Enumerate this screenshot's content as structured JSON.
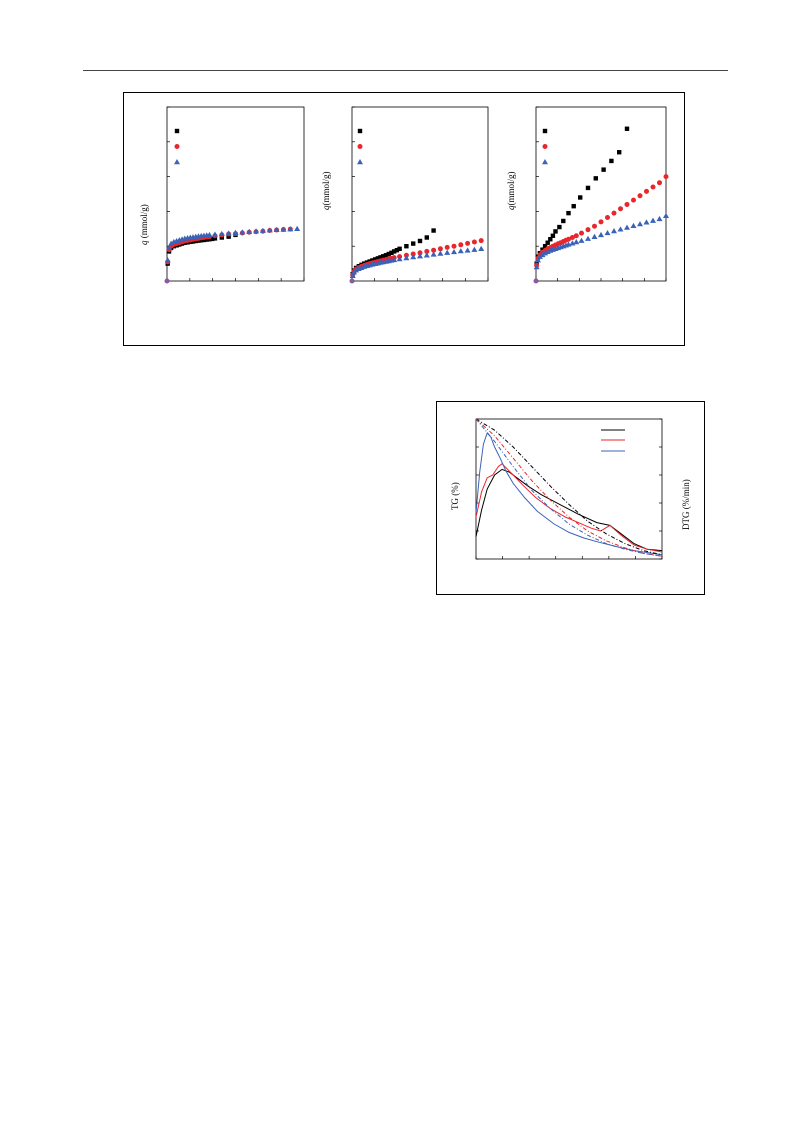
{
  "figure1": {
    "panels": [
      {
        "ylabel_italic": "q",
        "ylabel_rest": " (mmol/g)"
      },
      {
        "ylabel_italic": "q",
        "ylabel_rest": "(mmol/g)"
      },
      {
        "ylabel_italic": "q",
        "ylabel_rest": "(mmol/g)"
      }
    ]
  },
  "figure2": {
    "ylabel_left": "TG (%)",
    "ylabel_right": "DTG (%/min)"
  },
  "colors": {
    "black": "#000000",
    "red": "#e8262c",
    "blue": "#3a63b8"
  },
  "chart_data": [
    {
      "type": "scatter",
      "xlabel": "",
      "ylabel": "q (mmol/g)",
      "xlim": [
        0,
        1
      ],
      "ylim": [
        0,
        1
      ],
      "series": [
        {
          "marker": "square",
          "color": "#000000",
          "x": [
            0.005,
            0.015,
            0.03,
            0.05,
            0.07,
            0.09,
            0.11,
            0.13,
            0.15,
            0.17,
            0.19,
            0.21,
            0.23,
            0.25,
            0.27,
            0.29,
            0.31,
            0.33,
            0.35,
            0.4,
            0.45,
            0.5
          ],
          "y": [
            0.1,
            0.17,
            0.19,
            0.2,
            0.205,
            0.21,
            0.215,
            0.22,
            0.222,
            0.225,
            0.227,
            0.23,
            0.232,
            0.234,
            0.236,
            0.238,
            0.24,
            0.242,
            0.245,
            0.25,
            0.255,
            0.265
          ]
        },
        {
          "marker": "circle",
          "color": "#e8262c",
          "x": [
            0.005,
            0.015,
            0.03,
            0.05,
            0.07,
            0.09,
            0.11,
            0.13,
            0.15,
            0.17,
            0.19,
            0.21,
            0.23,
            0.25,
            0.27,
            0.29,
            0.31,
            0.35,
            0.4,
            0.45,
            0.5,
            0.55,
            0.6,
            0.65,
            0.7,
            0.75,
            0.8,
            0.85,
            0.9
          ],
          "y": [
            0.11,
            0.18,
            0.2,
            0.21,
            0.215,
            0.22,
            0.225,
            0.23,
            0.233,
            0.236,
            0.239,
            0.242,
            0.245,
            0.248,
            0.25,
            0.253,
            0.255,
            0.26,
            0.265,
            0.27,
            0.272,
            0.276,
            0.28,
            0.283,
            0.286,
            0.29,
            0.293,
            0.296,
            0.298
          ]
        },
        {
          "marker": "triangle",
          "color": "#3a63b8",
          "x": [
            0.005,
            0.015,
            0.03,
            0.05,
            0.07,
            0.09,
            0.11,
            0.13,
            0.15,
            0.17,
            0.19,
            0.21,
            0.23,
            0.25,
            0.27,
            0.29,
            0.31,
            0.35,
            0.4,
            0.45,
            0.5,
            0.55,
            0.6,
            0.65,
            0.7,
            0.75,
            0.8,
            0.85,
            0.9,
            0.95
          ],
          "y": [
            0.12,
            0.19,
            0.215,
            0.225,
            0.23,
            0.235,
            0.24,
            0.244,
            0.247,
            0.25,
            0.252,
            0.255,
            0.257,
            0.259,
            0.261,
            0.263,
            0.265,
            0.268,
            0.271,
            0.274,
            0.277,
            0.28,
            0.283,
            0.286,
            0.289,
            0.292,
            0.294,
            0.296,
            0.298,
            0.3
          ]
        }
      ]
    },
    {
      "type": "scatter",
      "xlabel": "",
      "ylabel": "q(mmol/g)",
      "xlim": [
        0,
        1
      ],
      "ylim": [
        0,
        1
      ],
      "series": [
        {
          "marker": "square",
          "color": "#000000",
          "x": [
            0.005,
            0.015,
            0.03,
            0.05,
            0.07,
            0.09,
            0.11,
            0.13,
            0.15,
            0.17,
            0.19,
            0.21,
            0.23,
            0.25,
            0.27,
            0.29,
            0.31,
            0.33,
            0.35,
            0.4,
            0.45,
            0.5,
            0.55,
            0.6
          ],
          "y": [
            0.04,
            0.06,
            0.075,
            0.085,
            0.093,
            0.1,
            0.106,
            0.112,
            0.118,
            0.124,
            0.13,
            0.136,
            0.142,
            0.148,
            0.155,
            0.162,
            0.17,
            0.177,
            0.185,
            0.2,
            0.215,
            0.23,
            0.25,
            0.29
          ]
        },
        {
          "marker": "circle",
          "color": "#e8262c",
          "x": [
            0.005,
            0.015,
            0.03,
            0.05,
            0.07,
            0.09,
            0.11,
            0.13,
            0.15,
            0.17,
            0.19,
            0.21,
            0.23,
            0.25,
            0.27,
            0.29,
            0.31,
            0.35,
            0.4,
            0.45,
            0.5,
            0.55,
            0.6,
            0.65,
            0.7,
            0.75,
            0.8,
            0.85,
            0.9,
            0.95
          ],
          "y": [
            0.035,
            0.055,
            0.068,
            0.077,
            0.084,
            0.09,
            0.095,
            0.1,
            0.104,
            0.108,
            0.112,
            0.116,
            0.12,
            0.123,
            0.127,
            0.13,
            0.134,
            0.14,
            0.148,
            0.155,
            0.162,
            0.17,
            0.177,
            0.185,
            0.193,
            0.2,
            0.208,
            0.216,
            0.224,
            0.232
          ]
        },
        {
          "marker": "triangle",
          "color": "#3a63b8",
          "x": [
            0.005,
            0.015,
            0.03,
            0.05,
            0.07,
            0.09,
            0.11,
            0.13,
            0.15,
            0.17,
            0.19,
            0.21,
            0.23,
            0.25,
            0.27,
            0.29,
            0.31,
            0.35,
            0.4,
            0.45,
            0.5,
            0.55,
            0.6,
            0.65,
            0.7,
            0.75,
            0.8,
            0.85,
            0.9,
            0.95
          ],
          "y": [
            0.03,
            0.05,
            0.062,
            0.07,
            0.076,
            0.082,
            0.087,
            0.091,
            0.095,
            0.099,
            0.102,
            0.106,
            0.109,
            0.112,
            0.115,
            0.118,
            0.121,
            0.126,
            0.132,
            0.138,
            0.143,
            0.148,
            0.153,
            0.158,
            0.163,
            0.167,
            0.172,
            0.176,
            0.18,
            0.185
          ]
        }
      ]
    },
    {
      "type": "scatter",
      "xlabel": "",
      "ylabel": "q(mmol/g)",
      "xlim": [
        0,
        1
      ],
      "ylim": [
        0,
        1
      ],
      "series": [
        {
          "marker": "square",
          "color": "#000000",
          "x": [
            0.005,
            0.015,
            0.03,
            0.05,
            0.07,
            0.09,
            0.11,
            0.13,
            0.15,
            0.18,
            0.21,
            0.25,
            0.29,
            0.34,
            0.4,
            0.46,
            0.52,
            0.58,
            0.64,
            0.7
          ],
          "y": [
            0.1,
            0.14,
            0.16,
            0.18,
            0.2,
            0.22,
            0.24,
            0.26,
            0.285,
            0.31,
            0.345,
            0.39,
            0.43,
            0.48,
            0.535,
            0.59,
            0.64,
            0.69,
            0.74,
            0.875
          ]
        },
        {
          "marker": "circle",
          "color": "#e8262c",
          "x": [
            0.005,
            0.015,
            0.03,
            0.05,
            0.07,
            0.09,
            0.11,
            0.13,
            0.15,
            0.17,
            0.19,
            0.21,
            0.23,
            0.25,
            0.28,
            0.31,
            0.35,
            0.4,
            0.45,
            0.5,
            0.55,
            0.6,
            0.65,
            0.7,
            0.75,
            0.8,
            0.85,
            0.9,
            0.95,
            1.0
          ],
          "y": [
            0.09,
            0.13,
            0.15,
            0.165,
            0.175,
            0.185,
            0.192,
            0.2,
            0.207,
            0.214,
            0.22,
            0.227,
            0.234,
            0.24,
            0.25,
            0.26,
            0.275,
            0.295,
            0.315,
            0.34,
            0.365,
            0.39,
            0.415,
            0.44,
            0.465,
            0.49,
            0.515,
            0.54,
            0.565,
            0.6
          ]
        },
        {
          "marker": "triangle",
          "color": "#3a63b8",
          "x": [
            0.005,
            0.015,
            0.03,
            0.05,
            0.07,
            0.09,
            0.11,
            0.13,
            0.15,
            0.17,
            0.19,
            0.21,
            0.23,
            0.25,
            0.28,
            0.31,
            0.35,
            0.4,
            0.45,
            0.5,
            0.55,
            0.6,
            0.65,
            0.7,
            0.75,
            0.8,
            0.85,
            0.9,
            0.95,
            1.0
          ],
          "y": [
            0.08,
            0.12,
            0.14,
            0.15,
            0.16,
            0.168,
            0.175,
            0.18,
            0.185,
            0.19,
            0.195,
            0.2,
            0.205,
            0.21,
            0.217,
            0.224,
            0.232,
            0.243,
            0.254,
            0.265,
            0.276,
            0.287,
            0.297,
            0.307,
            0.317,
            0.327,
            0.337,
            0.347,
            0.357,
            0.375
          ]
        }
      ]
    },
    {
      "type": "line",
      "ylabel": "TG (%)",
      "ylabel_right": "DTG (%/min)",
      "xlim": [
        0,
        1
      ],
      "ylim": [
        0,
        1
      ],
      "series": [
        {
          "color": "#000000",
          "style": "solid",
          "x": [
            0,
            0.03,
            0.06,
            0.1,
            0.14,
            0.18,
            0.22,
            0.28,
            0.35,
            0.45,
            0.55,
            0.65,
            0.72,
            0.78,
            0.85,
            0.92,
            1.0
          ],
          "y": [
            0.16,
            0.35,
            0.5,
            0.6,
            0.64,
            0.62,
            0.58,
            0.52,
            0.46,
            0.39,
            0.32,
            0.26,
            0.24,
            0.18,
            0.11,
            0.07,
            0.06
          ]
        },
        {
          "color": "#e8262c",
          "style": "solid",
          "x": [
            0,
            0.03,
            0.06,
            0.09,
            0.12,
            0.14,
            0.17,
            0.2,
            0.25,
            0.32,
            0.4,
            0.48,
            0.55,
            0.62,
            0.67,
            0.72,
            0.78,
            0.85,
            0.92,
            1.0
          ],
          "y": [
            0.3,
            0.48,
            0.58,
            0.6,
            0.66,
            0.68,
            0.64,
            0.6,
            0.53,
            0.44,
            0.36,
            0.3,
            0.26,
            0.22,
            0.2,
            0.24,
            0.17,
            0.1,
            0.07,
            0.05
          ]
        },
        {
          "color": "#3a63b8",
          "style": "solid",
          "x": [
            0,
            0.02,
            0.04,
            0.06,
            0.08,
            0.1,
            0.13,
            0.16,
            0.2,
            0.26,
            0.33,
            0.42,
            0.5,
            0.58,
            0.66,
            0.75,
            0.85,
            0.95,
            1.0
          ],
          "y": [
            0.33,
            0.62,
            0.82,
            0.9,
            0.87,
            0.8,
            0.72,
            0.63,
            0.54,
            0.44,
            0.34,
            0.25,
            0.19,
            0.15,
            0.12,
            0.09,
            0.06,
            0.04,
            0.03
          ]
        },
        {
          "color": "#000000",
          "style": "dashdot",
          "x": [
            0,
            0.1,
            0.2,
            0.3,
            0.4,
            0.5,
            0.6,
            0.7,
            0.8,
            0.9,
            1.0
          ],
          "y": [
            1.0,
            0.92,
            0.8,
            0.66,
            0.52,
            0.39,
            0.27,
            0.18,
            0.11,
            0.06,
            0.03
          ]
        },
        {
          "color": "#e8262c",
          "style": "dashdot",
          "x": [
            0,
            0.1,
            0.2,
            0.3,
            0.4,
            0.5,
            0.6,
            0.7,
            0.8,
            0.9,
            1.0
          ],
          "y": [
            1.0,
            0.88,
            0.72,
            0.56,
            0.42,
            0.3,
            0.2,
            0.13,
            0.08,
            0.04,
            0.02
          ]
        },
        {
          "color": "#3a63b8",
          "style": "dashdot",
          "x": [
            0,
            0.1,
            0.2,
            0.3,
            0.4,
            0.5,
            0.6,
            0.7,
            0.8,
            0.9,
            1.0
          ],
          "y": [
            1.0,
            0.84,
            0.66,
            0.49,
            0.36,
            0.25,
            0.17,
            0.11,
            0.07,
            0.04,
            0.02
          ]
        }
      ]
    }
  ]
}
